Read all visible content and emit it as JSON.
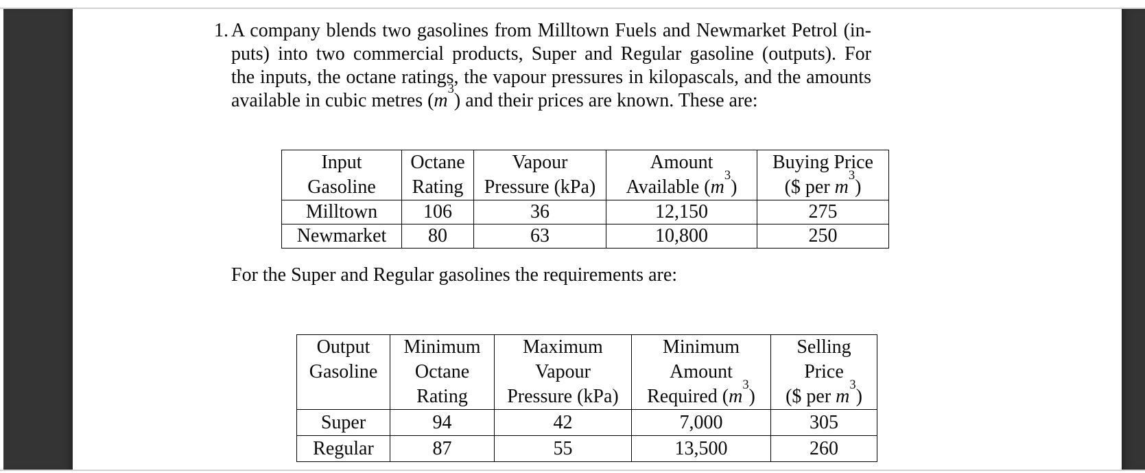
{
  "frame": {
    "bar_color": "#343434",
    "divider_color": "#d2d2d2",
    "page_bg": "#ffffff"
  },
  "problem": {
    "number": "1.",
    "lines": [
      "A company blends two gasolines from Milltown Fuels and Newmarket Petrol (in-",
      "puts) into two commercial products, Super and Regular gasoline (outputs).  For",
      "the inputs, the octane ratings, the vapour pressures in kilopascals, and the amounts",
      "available in cubic metres (m³) and their prices are known. These are:"
    ]
  },
  "requirements_intro": "For the Super and Regular gasolines the requirements are:",
  "input_table": {
    "headers": [
      [
        "Input",
        "Gasoline"
      ],
      [
        "Octane",
        "Rating"
      ],
      [
        "Vapour",
        "Pressure (kPa)"
      ],
      [
        "Amount",
        "Available (m³)"
      ],
      [
        "Buying Price",
        "($ per m³)"
      ]
    ],
    "rows": [
      [
        "Milltown",
        "106",
        "36",
        "12,150",
        "275"
      ],
      [
        "Newmarket",
        "80",
        "63",
        "10,800",
        "250"
      ]
    ]
  },
  "output_table": {
    "headers": [
      [
        "Output",
        "Gasoline"
      ],
      [
        "Minimum",
        "Octane",
        "Rating"
      ],
      [
        "Maximum",
        "Vapour",
        "Pressure (kPa)"
      ],
      [
        "Minimum",
        "Amount",
        "Required (m³)"
      ],
      [
        "Selling",
        "Price",
        "($ per m³)"
      ]
    ],
    "rows": [
      [
        "Super",
        "94",
        "42",
        "7,000",
        "305"
      ],
      [
        "Regular",
        "87",
        "55",
        "13,500",
        "260"
      ]
    ]
  }
}
